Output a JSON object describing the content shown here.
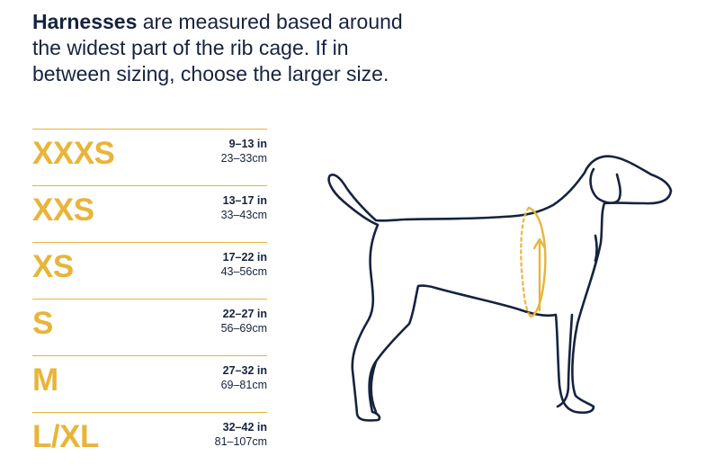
{
  "intro": {
    "bold": "Harnesses",
    "rest": " are measured based around the widest part of the rib cage. If in between sizing, choose the larger size."
  },
  "sizes": [
    {
      "label": "XXXS",
      "inches": "9–13 in",
      "cm": "23–33cm"
    },
    {
      "label": "XXS",
      "inches": "13–17 in",
      "cm": "33–43cm"
    },
    {
      "label": "XS",
      "inches": "17–22 in",
      "cm": "43–56cm"
    },
    {
      "label": "S",
      "inches": "22–27 in",
      "cm": "56–69cm"
    },
    {
      "label": "M",
      "inches": "27–32 in",
      "cm": "69–81cm"
    },
    {
      "label": "L/XL",
      "inches": "32–42 in",
      "cm": "81–107cm"
    }
  ],
  "colors": {
    "accent": "#e8b53a",
    "navy": "#16233f"
  },
  "illustration": {
    "icon": "dog-outline-icon",
    "measure_icon": "rib-cage-measurement-icon"
  }
}
